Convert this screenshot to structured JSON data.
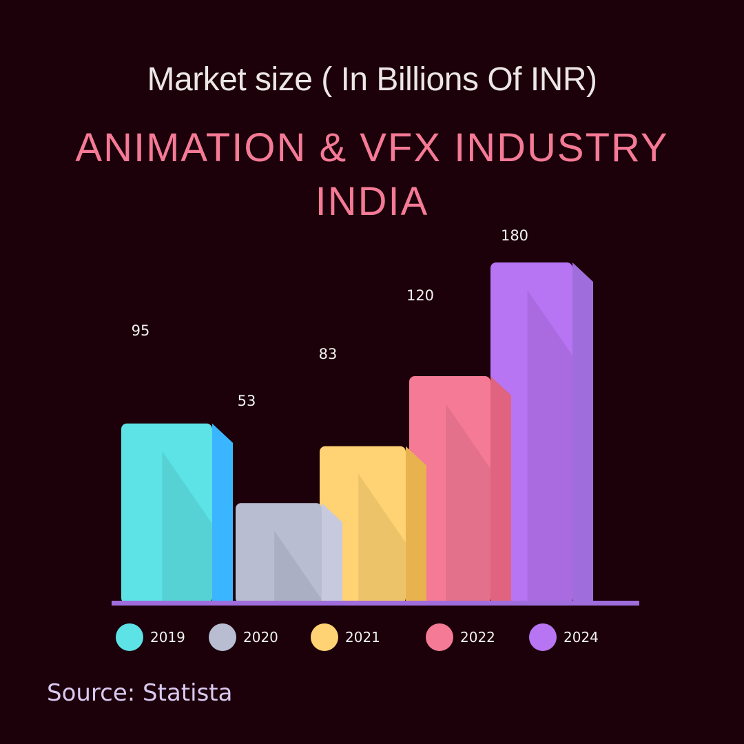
{
  "chart_data": {
    "type": "bar",
    "subtitle": "Market size ( In Billions Of INR)",
    "title": "ANIMATION & VFX INDUSTRY INDIA",
    "categories": [
      "2019",
      "2020",
      "2021",
      "2022",
      "2024"
    ],
    "values": [
      95,
      53,
      83,
      120,
      180
    ],
    "colors": [
      "#5de2e6",
      "#b8bdd2",
      "#ffd273",
      "#f57a96",
      "#b774f3"
    ],
    "side_colors": [
      "#3ab5ff",
      "#c7cadf",
      "#e8b24e",
      "#e0637f",
      "#a06edc"
    ],
    "legend": {
      "position": "bottom",
      "entries": [
        "2019",
        "2020",
        "2021",
        "2022",
        "2024"
      ]
    },
    "grid": false,
    "ylim": [
      0,
      200
    ]
  },
  "source": "Source: Statista"
}
